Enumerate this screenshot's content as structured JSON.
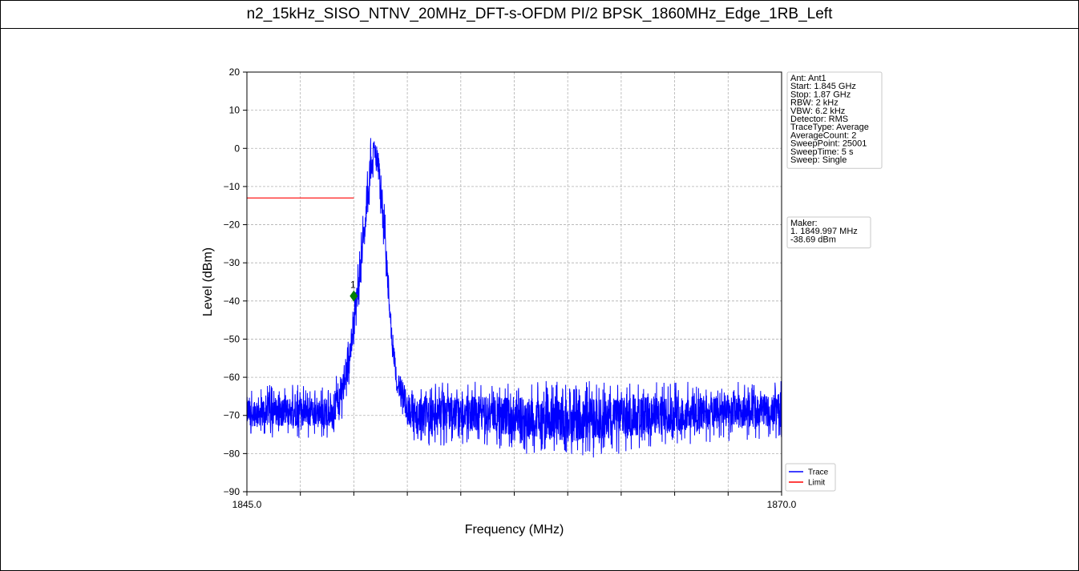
{
  "page": {
    "title": "n2_15kHz_SISO_NTNV_20MHz_DFT-s-OFDM PI/2 BPSK_1860MHz_Edge_1RB_Left"
  },
  "chart_data": {
    "type": "line",
    "title": "",
    "xlabel": "Frequency (MHz)",
    "ylabel": "Level (dBm)",
    "xlim": [
      1845.0,
      1870.0
    ],
    "ylim": [
      -90,
      20
    ],
    "x_tick_labels": [
      "1845.0",
      "1870.0"
    ],
    "x_minor_ticks": [
      1847.5,
      1850.0,
      1852.5,
      1855.0,
      1857.5,
      1860.0,
      1862.5,
      1865.0,
      1867.5
    ],
    "y_ticks": [
      20,
      10,
      0,
      -10,
      -20,
      -30,
      -40,
      -50,
      -60,
      -70,
      -80,
      -90
    ],
    "grid": true,
    "legend_position": "bottom-right",
    "series": [
      {
        "name": "Trace",
        "color": "#0000ff",
        "envelope_x": [
          1845.0,
          1848.0,
          1849.0,
          1849.4,
          1849.8,
          1850.0,
          1850.3,
          1850.6,
          1850.8,
          1851.0,
          1851.2,
          1851.5,
          1851.7,
          1852.0,
          1852.5,
          1853.0,
          1856.0,
          1860.0,
          1865.0,
          1870.0
        ],
        "envelope_max": [
          -62,
          -62,
          -62,
          -56,
          -48,
          -38,
          -24,
          -8,
          4,
          6,
          2,
          -20,
          -40,
          -55,
          -60,
          -61,
          -61,
          -61,
          -61,
          -61
        ],
        "envelope_min": [
          -76,
          -76,
          -76,
          -72,
          -62,
          -52,
          -40,
          -24,
          -12,
          -4,
          -14,
          -34,
          -50,
          -66,
          -76,
          -78,
          -78,
          -82,
          -78,
          -76
        ]
      },
      {
        "name": "Limit",
        "color": "#ff0000",
        "x": [
          1845.0,
          1850.0
        ],
        "y": [
          -13,
          -13
        ]
      }
    ],
    "marker": {
      "label": "1",
      "x": 1849.997,
      "y": -38.69,
      "color": "#008000"
    }
  },
  "info_box": {
    "lines": [
      "Ant: Ant1",
      "Start: 1.845 GHz",
      "Stop: 1.87 GHz",
      "RBW: 2 kHz",
      "VBW: 6.2 kHz",
      "Detector: RMS",
      "TraceType: Average",
      "AverageCount: 2",
      "SweepPoint: 25001",
      "SweepTime: 5 s",
      "Sweep: Single"
    ]
  },
  "marker_box": {
    "lines": [
      "Maker:",
      "1. 1849.997 MHz",
      "    -38.69 dBm"
    ]
  }
}
